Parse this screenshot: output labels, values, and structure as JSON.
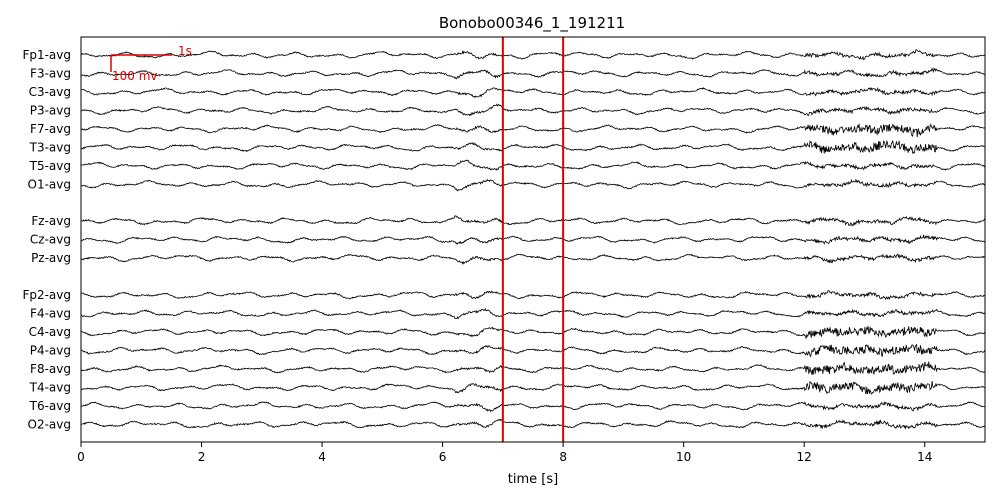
{
  "chart_data": {
    "type": "line",
    "title": "Bonobo00346_1_191211",
    "xlabel": "time [s]",
    "xlim": [
      0,
      15
    ],
    "xticks": [
      0,
      2,
      4,
      6,
      8,
      10,
      12,
      14
    ],
    "grid": false,
    "legend": "none",
    "colors": {
      "trace": "#000000",
      "marker": "#e00000",
      "scale": "#e00000",
      "axis": "#000000"
    },
    "scale_bar": {
      "time_label": "1s",
      "amplitude_label": "100 mv"
    },
    "markers": [
      7,
      8
    ],
    "groups": [
      {
        "channels": [
          "Fp1-avg",
          "F3-avg",
          "C3-avg",
          "P3-avg",
          "F7-avg",
          "T3-avg",
          "T5-avg",
          "O1-avg"
        ]
      },
      {
        "channels": [
          "Fz-avg",
          "Cz-avg",
          "Pz-avg"
        ]
      },
      {
        "channels": [
          "Fp2-avg",
          "F4-avg",
          "C4-avg",
          "P4-avg",
          "F8-avg",
          "T4-avg",
          "T6-avg",
          "O2-avg"
        ]
      }
    ]
  }
}
